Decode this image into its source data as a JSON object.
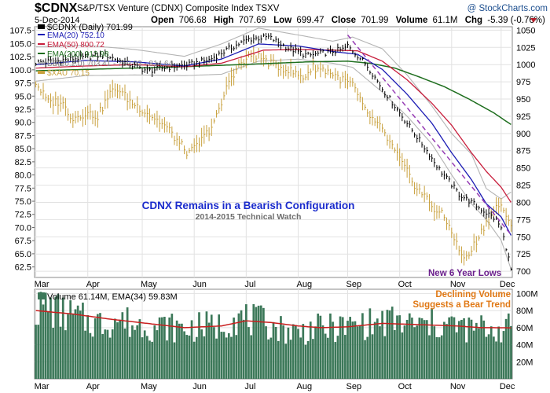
{
  "header": {
    "symbol": "$CDNX",
    "name": "S&P/TSX Venture (CDNX) Composite Index  TSXV",
    "source": "@ StockCharts.com",
    "date": "5-Dec-2014",
    "quote": {
      "open_label": "Open",
      "open": "706.68",
      "high_label": "High",
      "high": "707.69",
      "low_label": "Low",
      "low": "699.47",
      "close_label": "Close",
      "close": "701.99",
      "volume_label": "Volume",
      "volume": "61.1M",
      "chg_label": "Chg",
      "chg": "-5.39 (-0.76%)"
    }
  },
  "colors": {
    "price": "#000000",
    "ema20": "#1c1cb4",
    "ema50": "#c81e3c",
    "ema200": "#1e6e1e",
    "bb": "#b4b4b4",
    "xau": "#c8a03c",
    "trend": "#963cb4",
    "volume": "#3c7859",
    "volume_ema": "#c81e1e",
    "title": "#1a2bcc",
    "subtitle": "#6e6e6e",
    "callout_lows": "#6a1e8c",
    "callout_volume": "#e07814"
  },
  "legend": [
    {
      "key": "price",
      "text": "$CDNX (Daily) 701.99"
    },
    {
      "key": "ema20",
      "text": "EMA(20) 752.10"
    },
    {
      "key": "ema50",
      "text": "EMA(50) 800.72"
    },
    {
      "key": "ema200",
      "text": "EMA(200) 912.98"
    },
    {
      "key": "bb",
      "text": "BB(20,2.0) 703.41 - 759.03 - 814.64"
    },
    {
      "key": "xau",
      "text": "$XAU 70.15"
    }
  ],
  "volume_legend": "Volume 61.14M, EMA(34) 59.83M",
  "annotations": {
    "title": "CDNX Remains in a Bearish Configuration",
    "subtitle": "2014-2015 Technical Watch",
    "lows": "New 6 Year Lows",
    "volume_line1": "Declining Volume",
    "volume_line2": "Suggests a Bear Trend"
  },
  "chart_data": [
    {
      "type": "line",
      "title": "$CDNX S&P/TSX Venture (CDNX) Composite Index Daily",
      "x_label_unit": "trading day index (Mar 3 - Dec 5, 2014)",
      "months": [
        {
          "label": "Mar",
          "day": 0
        },
        {
          "label": "Apr",
          "day": 21
        },
        {
          "label": "May",
          "day": 43
        },
        {
          "label": "Jun",
          "day": 64
        },
        {
          "label": "Jul",
          "day": 85
        },
        {
          "label": "Aug",
          "day": 106
        },
        {
          "label": "Sep",
          "day": 126
        },
        {
          "label": "Oct",
          "day": 147
        },
        {
          "label": "Nov",
          "day": 168
        },
        {
          "label": "Dec",
          "day": 188
        }
      ],
      "x_range": [
        -0.5,
        192.5
      ],
      "y_right": {
        "label": "$CDNX",
        "range": [
          691,
          1055
        ],
        "ticks": [
          700,
          725,
          750,
          775,
          800,
          825,
          850,
          875,
          900,
          925,
          950,
          975,
          1000,
          1025,
          1050
        ]
      },
      "y_left": {
        "label": "$XAU",
        "range": [
          60.5,
          108.2
        ],
        "ticks": [
          62.5,
          65.0,
          67.5,
          70.0,
          72.5,
          75.0,
          77.5,
          80.0,
          82.5,
          85.0,
          87.5,
          90.0,
          92.5,
          95.0,
          97.5,
          100.0,
          102.5,
          105.0,
          107.5
        ]
      },
      "series": [
        {
          "name": "$CDNX close",
          "key": "price",
          "points": [
            [
              0,
              1003
            ],
            [
              10,
              1006
            ],
            [
              20,
              1011
            ],
            [
              28,
              1014
            ],
            [
              36,
              1003
            ],
            [
              45,
              991
            ],
            [
              55,
              997
            ],
            [
              62,
              1000
            ],
            [
              70,
              1007
            ],
            [
              78,
              1023
            ],
            [
              86,
              1037
            ],
            [
              94,
              1040
            ],
            [
              102,
              1024
            ],
            [
              110,
              1013
            ],
            [
              118,
              1018
            ],
            [
              124,
              1022
            ],
            [
              126,
              1027
            ],
            [
              130,
              1013
            ],
            [
              134,
              998
            ],
            [
              140,
              965
            ],
            [
              146,
              935
            ],
            [
              152,
              905
            ],
            [
              158,
              875
            ],
            [
              163,
              848
            ],
            [
              168,
              826
            ],
            [
              171,
              812
            ],
            [
              176,
              800
            ],
            [
              182,
              785
            ],
            [
              186,
              775
            ],
            [
              188,
              762
            ],
            [
              190,
              735
            ],
            [
              192,
              702
            ]
          ]
        },
        {
          "name": "EMA(20)",
          "key": "ema20",
          "points": [
            [
              0,
              1000
            ],
            [
              20,
              1006
            ],
            [
              40,
              1004
            ],
            [
              60,
              998
            ],
            [
              75,
              1008
            ],
            [
              90,
              1030
            ],
            [
              106,
              1027
            ],
            [
              120,
              1019
            ],
            [
              130,
              1015
            ],
            [
              140,
              993
            ],
            [
              150,
              957
            ],
            [
              160,
              915
            ],
            [
              168,
              872
            ],
            [
              176,
              833
            ],
            [
              182,
              798
            ],
            [
              188,
              779
            ],
            [
              192,
              752
            ]
          ]
        },
        {
          "name": "EMA(50)",
          "key": "ema50",
          "points": [
            [
              0,
              995
            ],
            [
              20,
              998
            ],
            [
              40,
              1000
            ],
            [
              60,
              997
            ],
            [
              75,
              1002
            ],
            [
              92,
              1021
            ],
            [
              106,
              1022
            ],
            [
              120,
              1021
            ],
            [
              130,
              1020
            ],
            [
              140,
              1005
            ],
            [
              150,
              978
            ],
            [
              160,
              944
            ],
            [
              168,
              912
            ],
            [
              176,
              872
            ],
            [
              182,
              845
            ],
            [
              188,
              822
            ],
            [
              192,
              800
            ]
          ]
        },
        {
          "name": "EMA(200)",
          "key": "ema200",
          "points": [
            [
              0,
              991
            ],
            [
              30,
              994
            ],
            [
              60,
              997
            ],
            [
              90,
              1001
            ],
            [
              110,
              1004
            ],
            [
              126,
              1005
            ],
            [
              135,
              1002
            ],
            [
              145,
              995
            ],
            [
              155,
              982
            ],
            [
              165,
              968
            ],
            [
              175,
              950
            ],
            [
              185,
              930
            ],
            [
              192,
              913
            ]
          ]
        },
        {
          "name": "BB(20,2.0) upper",
          "key": "bb",
          "points": [
            [
              0,
              1026
            ],
            [
              20,
              1028
            ],
            [
              40,
              1022
            ],
            [
              60,
              1012
            ],
            [
              75,
              1030
            ],
            [
              90,
              1053
            ],
            [
              106,
              1043
            ],
            [
              120,
              1034
            ],
            [
              128,
              1040
            ],
            [
              140,
              1023
            ],
            [
              150,
              985
            ],
            [
              160,
              940
            ],
            [
              168,
              900
            ],
            [
              176,
              870
            ],
            [
              182,
              820
            ],
            [
              188,
              805
            ],
            [
              192,
              815
            ]
          ]
        },
        {
          "name": "BB(20,2.0) lower",
          "key": "bb",
          "points": [
            [
              0,
              976
            ],
            [
              20,
              984
            ],
            [
              40,
              985
            ],
            [
              60,
              984
            ],
            [
              75,
              986
            ],
            [
              90,
              1005
            ],
            [
              106,
              1008
            ],
            [
              120,
              1002
            ],
            [
              128,
              996
            ],
            [
              140,
              960
            ],
            [
              150,
              925
            ],
            [
              160,
              885
            ],
            [
              168,
              840
            ],
            [
              176,
              798
            ],
            [
              182,
              775
            ],
            [
              188,
              745
            ],
            [
              192,
              703
            ]
          ]
        },
        {
          "name": "$XAU",
          "key": "xau",
          "points": [
            [
              0,
              97.6
            ],
            [
              5,
              93.8
            ],
            [
              10,
              94.0
            ],
            [
              15,
              90.8
            ],
            [
              20,
              91.8
            ],
            [
              25,
              91.2
            ],
            [
              30,
              95.5
            ],
            [
              33,
              96.5
            ],
            [
              38,
              94.0
            ],
            [
              43,
              92.5
            ],
            [
              48,
              90.8
            ],
            [
              53,
              89.0
            ],
            [
              58,
              86.0
            ],
            [
              62,
              84.0
            ],
            [
              66,
              86.0
            ],
            [
              70,
              88.5
            ],
            [
              74,
              92.0
            ],
            [
              78,
              98.0
            ],
            [
              82,
              100.8
            ],
            [
              88,
              103.0
            ],
            [
              95,
              101.2
            ],
            [
              102,
              100.0
            ],
            [
              108,
              98.5
            ],
            [
              112,
              100.5
            ],
            [
              118,
              99.8
            ],
            [
              124,
              98.0
            ],
            [
              128,
              97.2
            ],
            [
              132,
              93.0
            ],
            [
              136,
              90.5
            ],
            [
              140,
              88.5
            ],
            [
              145,
              84.5
            ],
            [
              150,
              80.5
            ],
            [
              154,
              77.5
            ],
            [
              158,
              75.5
            ],
            [
              161,
              73.5
            ],
            [
              164,
              72.5
            ],
            [
              168,
              69.5
            ],
            [
              171,
              65.5
            ],
            [
              174,
              64.0
            ],
            [
              178,
              67.5
            ],
            [
              182,
              71.0
            ],
            [
              186,
              73.8
            ],
            [
              188,
              74.5
            ],
            [
              190,
              71.5
            ],
            [
              192,
              70.15
            ]
          ]
        }
      ],
      "trendline": {
        "key": "trend",
        "from": [
          126,
          1043
        ],
        "to": [
          192,
          753
        ]
      }
    },
    {
      "type": "bar",
      "title": "Volume 61.14M, EMA(34) 59.83M",
      "y_range": [
        0,
        105
      ],
      "y_ticks": [
        20,
        40,
        60,
        80,
        100
      ],
      "y_tick_labels": [
        "20M",
        "40M",
        "60M",
        "80M",
        "100M"
      ],
      "volume_anchors": [
        [
          0,
          82
        ],
        [
          4,
          86
        ],
        [
          8,
          80
        ],
        [
          12,
          75
        ],
        [
          16,
          73
        ],
        [
          20,
          68
        ],
        [
          24,
          66
        ],
        [
          28,
          65
        ],
        [
          32,
          70
        ],
        [
          36,
          68
        ],
        [
          40,
          62
        ],
        [
          44,
          65
        ],
        [
          48,
          60
        ],
        [
          52,
          62
        ],
        [
          56,
          60
        ],
        [
          60,
          58
        ],
        [
          64,
          60
        ],
        [
          68,
          62
        ],
        [
          72,
          60
        ],
        [
          76,
          65
        ],
        [
          80,
          72
        ],
        [
          84,
          70
        ],
        [
          88,
          68
        ],
        [
          92,
          66
        ],
        [
          96,
          62
        ],
        [
          100,
          58
        ],
        [
          104,
          56
        ],
        [
          108,
          55
        ],
        [
          112,
          60
        ],
        [
          116,
          58
        ],
        [
          120,
          60
        ],
        [
          124,
          60
        ],
        [
          128,
          62
        ],
        [
          132,
          65
        ],
        [
          136,
          64
        ],
        [
          140,
          66
        ],
        [
          144,
          68
        ],
        [
          148,
          65
        ],
        [
          152,
          64
        ],
        [
          156,
          62
        ],
        [
          160,
          64
        ],
        [
          164,
          62
        ],
        [
          168,
          64
        ],
        [
          172,
          60
        ],
        [
          176,
          58
        ],
        [
          180,
          60
        ],
        [
          184,
          58
        ],
        [
          188,
          57
        ],
        [
          192,
          61
        ]
      ],
      "ema34": [
        [
          0,
          80
        ],
        [
          15,
          76
        ],
        [
          30,
          70
        ],
        [
          45,
          65
        ],
        [
          60,
          60
        ],
        [
          75,
          62
        ],
        [
          85,
          68
        ],
        [
          95,
          66
        ],
        [
          106,
          62
        ],
        [
          115,
          60
        ],
        [
          126,
          61
        ],
        [
          140,
          65
        ],
        [
          150,
          64
        ],
        [
          160,
          63
        ],
        [
          170,
          62
        ],
        [
          180,
          60
        ],
        [
          192,
          59.8
        ]
      ]
    }
  ]
}
